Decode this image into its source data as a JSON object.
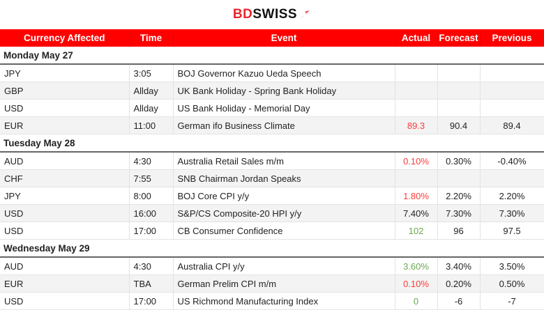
{
  "logo": {
    "text_bd": "BD",
    "text_swiss": "SWISS",
    "brand_color": "#e8262c"
  },
  "columns": [
    "Currency Affected",
    "Time",
    "Event",
    "Actual",
    "Forecast",
    "Previous"
  ],
  "days": [
    {
      "label": "Monday May 27",
      "rows": [
        {
          "currency": "JPY",
          "time": "3:05",
          "event": "BOJ Governor Kazuo Ueda Speech",
          "actual": "",
          "forecast": "",
          "previous": ""
        },
        {
          "currency": "GBP",
          "time": "Allday",
          "event": "UK Bank Holiday - Spring Bank Holiday",
          "actual": "",
          "forecast": "",
          "previous": ""
        },
        {
          "currency": "USD",
          "time": "Allday",
          "event": "US Bank Holiday - Memorial Day",
          "actual": "",
          "forecast": "",
          "previous": ""
        },
        {
          "currency": "EUR",
          "time": "11:00",
          "event": "German ifo Business Climate",
          "actual": "89.3",
          "actual_color": "red",
          "forecast": "90.4",
          "previous": "89.4"
        }
      ]
    },
    {
      "label": "Tuesday May 28",
      "rows": [
        {
          "currency": "AUD",
          "time": "4:30",
          "event": "Australia Retail Sales m/m",
          "actual": "0.10%",
          "actual_color": "red",
          "forecast": "0.30%",
          "previous": "-0.40%"
        },
        {
          "currency": "CHF",
          "time": "7:55",
          "event": "SNB Chairman Jordan Speaks",
          "actual": "",
          "forecast": "",
          "previous": ""
        },
        {
          "currency": "JPY",
          "time": "8:00",
          "event": "BOJ Core CPI y/y",
          "actual": "1.80%",
          "actual_color": "red",
          "forecast": "2.20%",
          "previous": "2.20%"
        },
        {
          "currency": "USD",
          "time": "16:00",
          "event": "S&P/CS Composite-20 HPI y/y",
          "actual": "7.40%",
          "actual_color": "neutral",
          "forecast": "7.30%",
          "previous": "7.30%"
        },
        {
          "currency": "USD",
          "time": "17:00",
          "event": "CB Consumer Confidence",
          "actual": "102",
          "actual_color": "green",
          "forecast": "96",
          "previous": "97.5"
        }
      ]
    },
    {
      "label": "Wednesday May 29",
      "rows": [
        {
          "currency": "AUD",
          "time": "4:30",
          "event": "Australia CPI y/y",
          "actual": "3.60%",
          "actual_color": "green",
          "forecast": "3.40%",
          "previous": "3.50%"
        },
        {
          "currency": "EUR",
          "time": "TBA",
          "event": "German Prelim CPI m/m",
          "actual": "0.10%",
          "actual_color": "red",
          "forecast": "0.20%",
          "previous": "0.50%"
        },
        {
          "currency": "USD",
          "time": "17:00",
          "event": "US Richmond Manufacturing Index",
          "actual": "0",
          "actual_color": "green",
          "forecast": "-6",
          "previous": "-7"
        }
      ]
    }
  ]
}
